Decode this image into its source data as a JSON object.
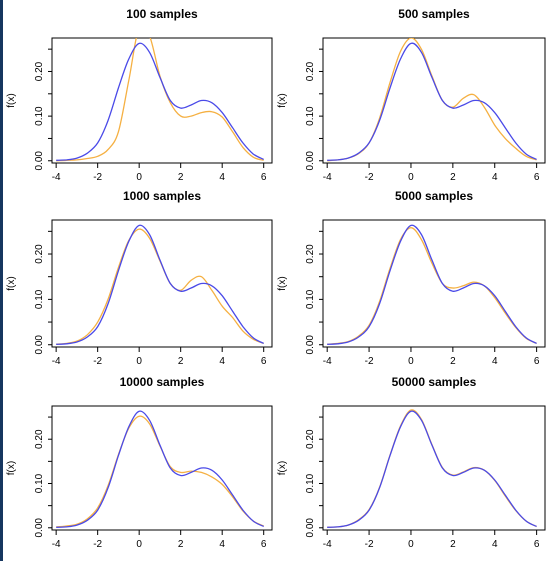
{
  "chart_data": [
    {
      "type": "line",
      "title": "100  samples",
      "xlabel": "",
      "ylabel": "f(x)",
      "xlim": [
        -4.2,
        6.4
      ],
      "ylim": [
        -0.005,
        0.275
      ],
      "xticks": [
        -4,
        -2,
        0,
        2,
        4,
        6
      ],
      "yticks": [
        0.0,
        0.1,
        0.2
      ],
      "ytick_labels": [
        "0.00",
        "0.10",
        "0.20"
      ],
      "grid": false,
      "colors": {
        "true": "#4a4ae8",
        "estimate": "#f5b042"
      },
      "series": [
        {
          "role": "true_density",
          "x": [
            -4,
            -3.5,
            -3,
            -2.5,
            -2,
            -1.5,
            -1,
            -0.5,
            0,
            0.5,
            1,
            1.5,
            2,
            2.5,
            3,
            3.5,
            4,
            4.5,
            5,
            5.5,
            6
          ],
          "values": [
            0.001,
            0.002,
            0.006,
            0.017,
            0.04,
            0.09,
            0.163,
            0.228,
            0.263,
            0.243,
            0.187,
            0.135,
            0.118,
            0.125,
            0.135,
            0.13,
            0.108,
            0.074,
            0.04,
            0.015,
            0.003
          ]
        },
        {
          "role": "kde_estimate",
          "x": [
            -4,
            -3.5,
            -3,
            -2.5,
            -2,
            -1.5,
            -1,
            -0.5,
            0,
            0.5,
            1,
            1.5,
            2,
            2.5,
            3,
            3.5,
            4,
            4.5,
            5,
            5.5,
            6
          ],
          "values": [
            0.0,
            0.001,
            0.002,
            0.005,
            0.01,
            0.025,
            0.065,
            0.18,
            0.3,
            0.28,
            0.19,
            0.13,
            0.1,
            0.1,
            0.108,
            0.11,
            0.098,
            0.065,
            0.03,
            0.008,
            0.001
          ]
        }
      ]
    },
    {
      "type": "line",
      "title": "500  samples",
      "xlabel": "",
      "ylabel": "f(x)",
      "xlim": [
        -4.2,
        6.4
      ],
      "ylim": [
        -0.005,
        0.275
      ],
      "xticks": [
        -4,
        -2,
        0,
        2,
        4,
        6
      ],
      "yticks": [
        0.0,
        0.1,
        0.2
      ],
      "ytick_labels": [
        "0.00",
        "0.10",
        "0.20"
      ],
      "grid": false,
      "colors": {
        "true": "#4a4ae8",
        "estimate": "#f5b042"
      },
      "series": [
        {
          "role": "true_density",
          "x": [
            -4,
            -3.5,
            -3,
            -2.5,
            -2,
            -1.5,
            -1,
            -0.5,
            0,
            0.5,
            1,
            1.5,
            2,
            2.5,
            3,
            3.5,
            4,
            4.5,
            5,
            5.5,
            6
          ],
          "values": [
            0.001,
            0.002,
            0.006,
            0.017,
            0.04,
            0.09,
            0.163,
            0.228,
            0.263,
            0.243,
            0.187,
            0.135,
            0.118,
            0.125,
            0.135,
            0.13,
            0.108,
            0.074,
            0.04,
            0.015,
            0.003
          ]
        },
        {
          "role": "kde_estimate",
          "x": [
            -4,
            -3.5,
            -3,
            -2.5,
            -2,
            -1.5,
            -1,
            -0.5,
            0,
            0.5,
            1,
            1.5,
            2,
            2.5,
            3,
            3.5,
            4,
            4.5,
            5,
            5.5,
            6
          ],
          "values": [
            0.0,
            0.002,
            0.006,
            0.016,
            0.04,
            0.095,
            0.175,
            0.245,
            0.275,
            0.25,
            0.19,
            0.135,
            0.12,
            0.14,
            0.148,
            0.12,
            0.08,
            0.05,
            0.028,
            0.01,
            0.002
          ]
        }
      ]
    },
    {
      "type": "line",
      "title": "1000  samples",
      "xlabel": "",
      "ylabel": "f(x)",
      "xlim": [
        -4.2,
        6.4
      ],
      "ylim": [
        -0.005,
        0.275
      ],
      "xticks": [
        -4,
        -2,
        0,
        2,
        4,
        6
      ],
      "yticks": [
        0.0,
        0.1,
        0.2
      ],
      "ytick_labels": [
        "0.00",
        "0.10",
        "0.20"
      ],
      "grid": false,
      "colors": {
        "true": "#4a4ae8",
        "estimate": "#f5b042"
      },
      "series": [
        {
          "role": "true_density",
          "x": [
            -4,
            -3.5,
            -3,
            -2.5,
            -2,
            -1.5,
            -1,
            -0.5,
            0,
            0.5,
            1,
            1.5,
            2,
            2.5,
            3,
            3.5,
            4,
            4.5,
            5,
            5.5,
            6
          ],
          "values": [
            0.001,
            0.002,
            0.006,
            0.017,
            0.04,
            0.09,
            0.163,
            0.228,
            0.263,
            0.243,
            0.187,
            0.135,
            0.118,
            0.125,
            0.135,
            0.13,
            0.108,
            0.074,
            0.04,
            0.015,
            0.003
          ]
        },
        {
          "role": "kde_estimate",
          "x": [
            -4,
            -3.5,
            -3,
            -2.5,
            -2,
            -1.5,
            -1,
            -0.5,
            0,
            0.5,
            1,
            1.5,
            2,
            2.5,
            3,
            3.5,
            4,
            4.5,
            5,
            5.5,
            6
          ],
          "values": [
            0.001,
            0.003,
            0.008,
            0.022,
            0.05,
            0.1,
            0.17,
            0.23,
            0.255,
            0.235,
            0.185,
            0.135,
            0.12,
            0.142,
            0.15,
            0.12,
            0.085,
            0.06,
            0.03,
            0.012,
            0.003
          ]
        }
      ]
    },
    {
      "type": "line",
      "title": "5000  samples",
      "xlabel": "",
      "ylabel": "f(x)",
      "xlim": [
        -4.2,
        6.4
      ],
      "ylim": [
        -0.005,
        0.275
      ],
      "xticks": [
        -4,
        -2,
        0,
        2,
        4,
        6
      ],
      "yticks": [
        0.0,
        0.1,
        0.2
      ],
      "ytick_labels": [
        "0.00",
        "0.10",
        "0.20"
      ],
      "grid": false,
      "colors": {
        "true": "#4a4ae8",
        "estimate": "#f5b042"
      },
      "series": [
        {
          "role": "true_density",
          "x": [
            -4,
            -3.5,
            -3,
            -2.5,
            -2,
            -1.5,
            -1,
            -0.5,
            0,
            0.5,
            1,
            1.5,
            2,
            2.5,
            3,
            3.5,
            4,
            4.5,
            5,
            5.5,
            6
          ],
          "values": [
            0.001,
            0.002,
            0.006,
            0.017,
            0.04,
            0.09,
            0.163,
            0.228,
            0.263,
            0.243,
            0.187,
            0.135,
            0.118,
            0.125,
            0.135,
            0.13,
            0.108,
            0.074,
            0.04,
            0.015,
            0.003
          ]
        },
        {
          "role": "kde_estimate",
          "x": [
            -4,
            -3.5,
            -3,
            -2.5,
            -2,
            -1.5,
            -1,
            -0.5,
            0,
            0.5,
            1,
            1.5,
            2,
            2.5,
            3,
            3.5,
            4,
            4.5,
            5,
            5.5,
            6
          ],
          "values": [
            0.001,
            0.003,
            0.007,
            0.019,
            0.043,
            0.095,
            0.168,
            0.232,
            0.258,
            0.232,
            0.18,
            0.135,
            0.125,
            0.13,
            0.138,
            0.13,
            0.104,
            0.07,
            0.038,
            0.014,
            0.003
          ]
        }
      ]
    },
    {
      "type": "line",
      "title": "10000  samples",
      "xlabel": "",
      "ylabel": "f(x)",
      "xlim": [
        -4.2,
        6.4
      ],
      "ylim": [
        -0.005,
        0.275
      ],
      "xticks": [
        -4,
        -2,
        0,
        2,
        4,
        6
      ],
      "yticks": [
        0.0,
        0.1,
        0.2
      ],
      "ytick_labels": [
        "0.00",
        "0.10",
        "0.20"
      ],
      "grid": false,
      "colors": {
        "true": "#4a4ae8",
        "estimate": "#f5b042"
      },
      "series": [
        {
          "role": "true_density",
          "x": [
            -4,
            -3.5,
            -3,
            -2.5,
            -2,
            -1.5,
            -1,
            -0.5,
            0,
            0.5,
            1,
            1.5,
            2,
            2.5,
            3,
            3.5,
            4,
            4.5,
            5,
            5.5,
            6
          ],
          "values": [
            0.001,
            0.002,
            0.006,
            0.017,
            0.04,
            0.09,
            0.163,
            0.228,
            0.263,
            0.243,
            0.187,
            0.135,
            0.118,
            0.125,
            0.135,
            0.13,
            0.108,
            0.074,
            0.04,
            0.015,
            0.003
          ]
        },
        {
          "role": "kde_estimate",
          "x": [
            -4,
            -3.5,
            -3,
            -2.5,
            -2,
            -1.5,
            -1,
            -0.5,
            0,
            0.5,
            1,
            1.5,
            2,
            2.5,
            3,
            3.5,
            4,
            4.5,
            5,
            5.5,
            6
          ],
          "values": [
            0.002,
            0.004,
            0.008,
            0.02,
            0.045,
            0.095,
            0.165,
            0.225,
            0.252,
            0.235,
            0.185,
            0.138,
            0.125,
            0.128,
            0.125,
            0.115,
            0.098,
            0.07,
            0.038,
            0.015,
            0.004
          ]
        }
      ]
    },
    {
      "type": "line",
      "title": "50000  samples",
      "xlabel": "",
      "ylabel": "f(x)",
      "xlim": [
        -4.2,
        6.4
      ],
      "ylim": [
        -0.005,
        0.275
      ],
      "xticks": [
        -4,
        -2,
        0,
        2,
        4,
        6
      ],
      "yticks": [
        0.0,
        0.1,
        0.2
      ],
      "ytick_labels": [
        "0.00",
        "0.10",
        "0.20"
      ],
      "grid": false,
      "colors": {
        "true": "#4a4ae8",
        "estimate": "#f5b042"
      },
      "series": [
        {
          "role": "true_density",
          "x": [
            -4,
            -3.5,
            -3,
            -2.5,
            -2,
            -1.5,
            -1,
            -0.5,
            0,
            0.5,
            1,
            1.5,
            2,
            2.5,
            3,
            3.5,
            4,
            4.5,
            5,
            5.5,
            6
          ],
          "values": [
            0.001,
            0.002,
            0.006,
            0.017,
            0.04,
            0.09,
            0.163,
            0.228,
            0.263,
            0.243,
            0.187,
            0.135,
            0.118,
            0.125,
            0.135,
            0.13,
            0.108,
            0.074,
            0.04,
            0.015,
            0.003
          ]
        },
        {
          "role": "kde_estimate",
          "x": [
            -4,
            -3.5,
            -3,
            -2.5,
            -2,
            -1.5,
            -1,
            -0.5,
            0,
            0.5,
            1,
            1.5,
            2,
            2.5,
            3,
            3.5,
            4,
            4.5,
            5,
            5.5,
            6
          ],
          "values": [
            0.001,
            0.002,
            0.006,
            0.018,
            0.041,
            0.091,
            0.164,
            0.23,
            0.266,
            0.245,
            0.188,
            0.136,
            0.119,
            0.126,
            0.136,
            0.13,
            0.107,
            0.072,
            0.039,
            0.015,
            0.003
          ]
        }
      ]
    }
  ]
}
